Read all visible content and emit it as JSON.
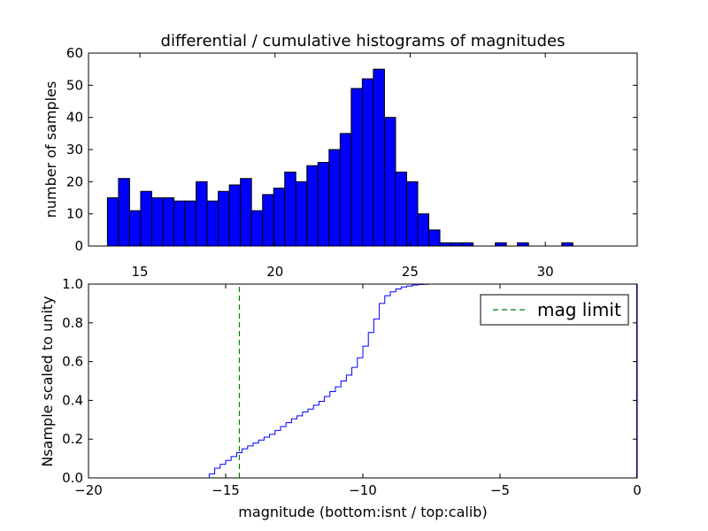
{
  "chart_data": [
    {
      "type": "bar",
      "panel": "top",
      "title": "differential / cumulative histograms of magnitudes",
      "ylabel": "number of samples",
      "xlim": [
        13.1,
        33.4
      ],
      "ylim": [
        0,
        60
      ],
      "xticks": [
        15,
        20,
        25,
        30
      ],
      "yticks": [
        0,
        10,
        20,
        30,
        40,
        50,
        60
      ],
      "xtick_position": "top-of-bottom (labels below axes)",
      "bar_color": "#0000ff",
      "bin_edges": [
        13.8,
        14.21,
        14.62,
        15.03,
        15.44,
        15.85,
        16.26,
        16.67,
        17.08,
        17.49,
        17.9,
        18.31,
        18.72,
        19.13,
        19.54,
        19.95,
        20.36,
        20.77,
        21.18,
        21.59,
        22.0,
        22.41,
        22.82,
        23.23,
        23.64,
        24.05,
        24.46,
        24.87,
        25.28,
        25.69,
        26.1,
        26.51,
        26.92,
        27.33,
        27.74,
        28.15,
        28.56,
        28.97,
        29.38,
        29.79,
        30.2,
        30.61,
        31.02,
        31.43,
        31.84,
        32.25,
        32.66
      ],
      "values": [
        15,
        21,
        11,
        17,
        15,
        15,
        14,
        14,
        20,
        14,
        17,
        19,
        21,
        11,
        16,
        18,
        23,
        20,
        25,
        26,
        30,
        35,
        49,
        52,
        55,
        40,
        23,
        20,
        10,
        5,
        1,
        1,
        1,
        0,
        0,
        1,
        0,
        1,
        0,
        0,
        0,
        1,
        0,
        0,
        0,
        0
      ]
    },
    {
      "type": "line",
      "panel": "bottom",
      "step": true,
      "xlabel": "magnitude (bottom:isnt / top:calib)",
      "ylabel": "Nsample scaled to unity",
      "xlim": [
        -20,
        0
      ],
      "ylim": [
        0,
        1.0
      ],
      "xticks": [
        -20,
        -15,
        -10,
        -5,
        0
      ],
      "yticks": [
        0.0,
        0.2,
        0.4,
        0.6,
        0.8,
        1.0
      ],
      "xtick_labels": [
        "−20",
        "−15",
        "−10",
        "−5",
        "0"
      ],
      "ytick_labels": [
        "0.0",
        "0.2",
        "0.4",
        "0.6",
        "0.8",
        "1.0"
      ],
      "series": [
        {
          "name": "",
          "color": "#0000ff",
          "x": [
            -20,
            -15.85,
            -15.6,
            -15.4,
            -15.2,
            -15.0,
            -14.8,
            -14.6,
            -14.4,
            -14.2,
            -14.0,
            -13.8,
            -13.6,
            -13.4,
            -13.2,
            -13.0,
            -12.8,
            -12.6,
            -12.4,
            -12.2,
            -12.0,
            -11.8,
            -11.6,
            -11.4,
            -11.2,
            -11.0,
            -10.8,
            -10.6,
            -10.4,
            -10.2,
            -10.0,
            -9.8,
            -9.6,
            -9.4,
            -9.2,
            -9.0,
            -8.8,
            -8.6,
            -8.4,
            -8.2,
            -8.0,
            -7.8,
            -7.6,
            -7.4,
            -7.0,
            -6.7,
            -0.02
          ],
          "y": [
            0.0,
            0.0,
            0.02,
            0.05,
            0.07,
            0.09,
            0.11,
            0.13,
            0.15,
            0.165,
            0.18,
            0.195,
            0.21,
            0.225,
            0.245,
            0.265,
            0.285,
            0.305,
            0.32,
            0.34,
            0.355,
            0.375,
            0.395,
            0.42,
            0.445,
            0.47,
            0.5,
            0.53,
            0.57,
            0.62,
            0.68,
            0.75,
            0.82,
            0.9,
            0.94,
            0.96,
            0.975,
            0.985,
            0.99,
            0.995,
            0.998,
            0.999,
            1.0,
            1.0,
            1.0,
            1.0,
            1.0
          ]
        }
      ],
      "mag_limit": {
        "x": -14.5,
        "color": "#008000",
        "style": "dashed"
      },
      "legend": {
        "position": "top-right",
        "entries": [
          {
            "label": "mag limit",
            "color": "#008000",
            "style": "dashed"
          }
        ]
      }
    }
  ]
}
